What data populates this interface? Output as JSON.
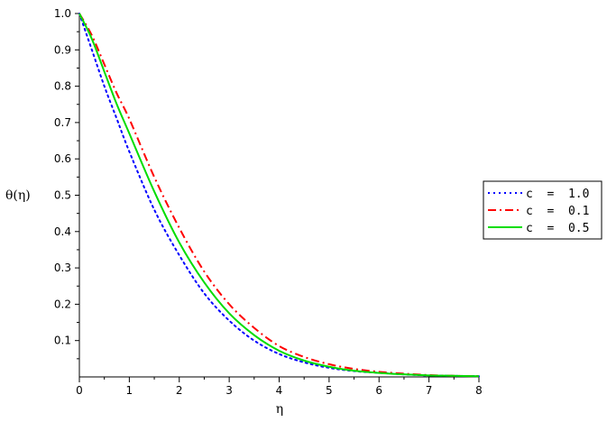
{
  "chart_data": {
    "type": "line",
    "xlabel": "η",
    "ylabel": "θ(η)",
    "xlim": [
      0,
      8
    ],
    "ylim": [
      0,
      1.0
    ],
    "x_ticks": [
      "0",
      "1",
      "2",
      "3",
      "4",
      "5",
      "6",
      "7",
      "8"
    ],
    "y_ticks": [
      "0.1",
      "0.2",
      "0.3",
      "0.4",
      "0.5",
      "0.6",
      "0.7",
      "0.8",
      "0.9",
      "1.0"
    ],
    "grid": false,
    "legend": {
      "placement": "right",
      "entries": [
        "c  =  1.0",
        "c  =  0.1",
        "c  =  0.5"
      ]
    },
    "series": [
      {
        "name": "c  =  1.0",
        "color": "#0000ff",
        "style": "dotted",
        "x": [
          0,
          0.25,
          0.5,
          0.75,
          1,
          1.5,
          2,
          2.5,
          3,
          3.5,
          4,
          4.5,
          5,
          5.5,
          6,
          6.5,
          7,
          7.5,
          8
        ],
        "y": [
          1.0,
          0.9,
          0.8,
          0.71,
          0.62,
          0.46,
          0.335,
          0.23,
          0.155,
          0.1,
          0.063,
          0.04,
          0.025,
          0.016,
          0.011,
          0.007,
          0.004,
          0.003,
          0.002
        ]
      },
      {
        "name": "c  =  0.1",
        "color": "#ff0000",
        "style": "dashdot",
        "x": [
          0,
          0.25,
          0.5,
          0.75,
          1,
          1.5,
          2,
          2.5,
          3,
          3.5,
          4,
          4.5,
          5,
          5.5,
          6,
          6.5,
          7,
          7.5,
          8
        ],
        "y": [
          1.0,
          0.94,
          0.86,
          0.78,
          0.71,
          0.55,
          0.41,
          0.29,
          0.2,
          0.135,
          0.085,
          0.055,
          0.035,
          0.022,
          0.014,
          0.009,
          0.005,
          0.003,
          0.002
        ]
      },
      {
        "name": "c  =  0.5",
        "color": "#00dd00",
        "style": "solid",
        "x": [
          0,
          0.25,
          0.5,
          0.75,
          1,
          1.5,
          2,
          2.5,
          3,
          3.5,
          4,
          4.5,
          5,
          5.5,
          6,
          6.5,
          7,
          7.5,
          8
        ],
        "y": [
          1.0,
          0.93,
          0.84,
          0.75,
          0.67,
          0.51,
          0.37,
          0.26,
          0.175,
          0.115,
          0.072,
          0.045,
          0.028,
          0.017,
          0.011,
          0.007,
          0.004,
          0.003,
          0.002
        ]
      }
    ]
  }
}
